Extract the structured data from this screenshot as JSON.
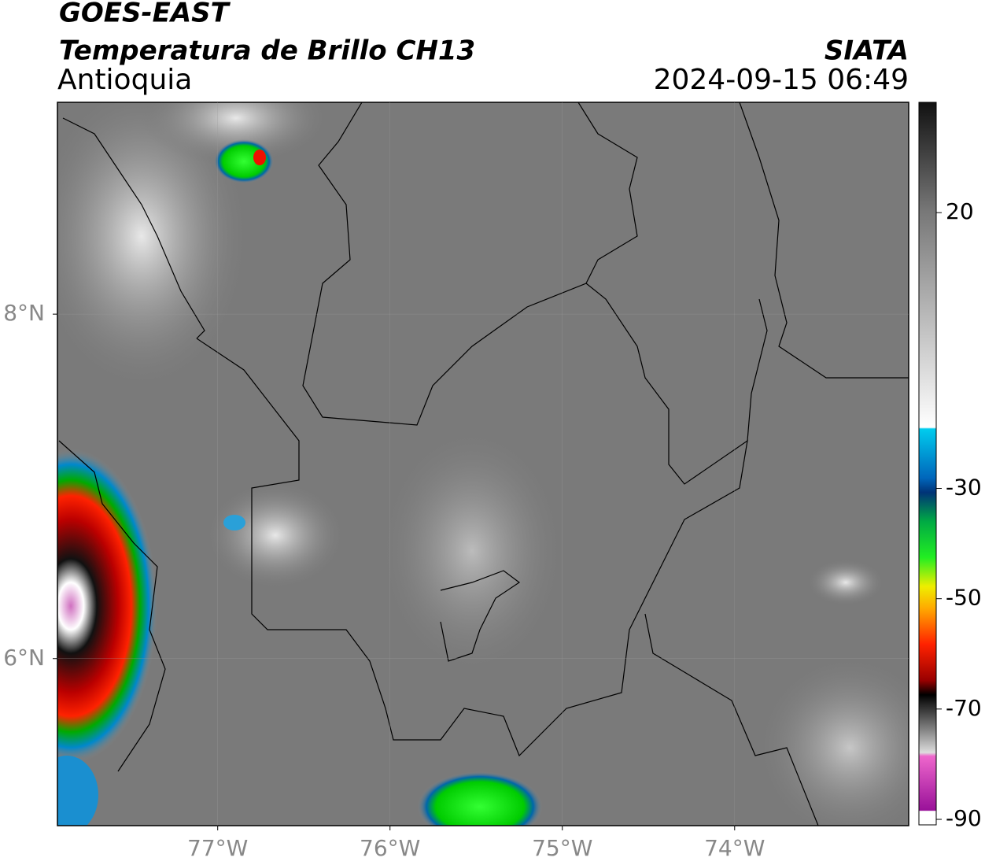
{
  "header": {
    "title": "GOES-EAST",
    "subtitle": "Temperatura de Brillo CH13",
    "region": "Antioquia",
    "source": "SIATA",
    "datetime": "2024-09-15 06:49"
  },
  "map": {
    "xlim": [
      -77.93,
      -72.99
    ],
    "ylim": [
      5.03,
      9.23
    ],
    "xticks": [
      {
        "value": -77,
        "label": "77°W"
      },
      {
        "value": -76,
        "label": "76°W"
      },
      {
        "value": -75,
        "label": "75°W"
      },
      {
        "value": -74,
        "label": "74°W"
      }
    ],
    "yticks": [
      {
        "value": 8,
        "label": "8°N"
      },
      {
        "value": 6,
        "label": "6°N"
      }
    ],
    "grid": true
  },
  "colorbar": {
    "range": [
      -91,
      40
    ],
    "ticks": [
      20,
      -30,
      -50,
      -70,
      -90
    ]
  }
}
